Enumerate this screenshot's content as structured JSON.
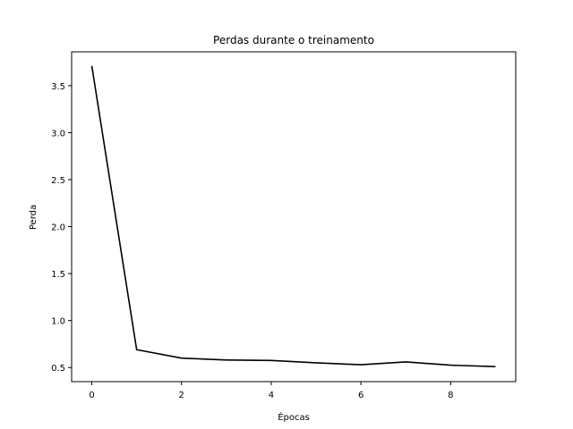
{
  "chart_data": {
    "type": "line",
    "title": "Perdas durante o treinamento",
    "xlabel": "Épocas",
    "ylabel": "Perda",
    "x": [
      0,
      1,
      2,
      3,
      4,
      5,
      6,
      7,
      8,
      9
    ],
    "series": [
      {
        "values": [
          3.71,
          0.69,
          0.6,
          0.58,
          0.575,
          0.55,
          0.53,
          0.56,
          0.525,
          0.51
        ],
        "color": "#000000"
      }
    ],
    "xlim": [
      -0.45,
      9.45
    ],
    "ylim": [
      0.35,
      3.86
    ],
    "xticks": [
      0,
      2,
      4,
      6,
      8
    ],
    "xtick_labels": [
      "0",
      "2",
      "4",
      "6",
      "8"
    ],
    "yticks": [
      0.5,
      1.0,
      1.5,
      2.0,
      2.5,
      3.0,
      3.5
    ],
    "ytick_labels": [
      "0.5",
      "1.0",
      "1.5",
      "2.0",
      "2.5",
      "3.0",
      "3.5"
    ],
    "grid": false,
    "legend": "none"
  }
}
